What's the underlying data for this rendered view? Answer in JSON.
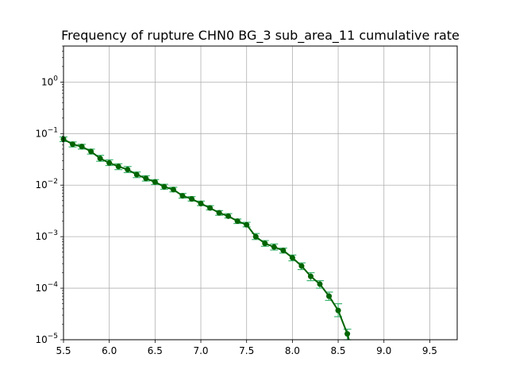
{
  "chart_data": {
    "type": "line",
    "title": "Frequency of rupture CHN0 BG_3 sub_area_11 cumulative rate",
    "xlabel": "",
    "ylabel": "",
    "xlim": [
      5.5,
      9.8
    ],
    "ylim": [
      1e-05,
      5
    ],
    "yscale": "log",
    "grid": true,
    "x_ticks": [
      5.5,
      6.0,
      6.5,
      7.0,
      7.5,
      8.0,
      8.5,
      9.0,
      9.5
    ],
    "x_tick_labels": [
      "5.5",
      "6.0",
      "6.5",
      "7.0",
      "7.5",
      "8.0",
      "8.5",
      "9.0",
      "9.5"
    ],
    "y_ticks": [
      1e-05,
      0.0001,
      0.001,
      0.01,
      0.1,
      1
    ],
    "y_tick_labels": [
      {
        "base": "10",
        "exp": "−5"
      },
      {
        "base": "10",
        "exp": "−4"
      },
      {
        "base": "10",
        "exp": "−3"
      },
      {
        "base": "10",
        "exp": "−2"
      },
      {
        "base": "10",
        "exp": "−1"
      },
      {
        "base": "10",
        "exp": "0"
      }
    ],
    "series": [
      {
        "color": "#006400",
        "error_color": "#3cb371",
        "x": [
          5.5,
          5.6,
          5.7,
          5.8,
          5.9,
          6.0,
          6.1,
          6.2,
          6.3,
          6.4,
          6.5,
          6.6,
          6.7,
          6.8,
          6.9,
          7.0,
          7.1,
          7.2,
          7.3,
          7.4,
          7.5,
          7.6,
          7.7,
          7.8,
          7.9,
          8.0,
          8.1,
          8.2,
          8.3,
          8.4,
          8.5,
          8.6
        ],
        "y": [
          0.078,
          0.062,
          0.056,
          0.045,
          0.033,
          0.027,
          0.023,
          0.02,
          0.016,
          0.0135,
          0.0115,
          0.0093,
          0.0082,
          0.0062,
          0.0054,
          0.0044,
          0.0036,
          0.0029,
          0.0025,
          0.002,
          0.0017,
          0.001,
          0.00074,
          0.00063,
          0.00054,
          0.00039,
          0.00027,
          0.00017,
          0.00012,
          7e-05,
          3.7e-05,
          1.3e-05
        ],
        "y_err_low": [
          0.07,
          0.055,
          0.05,
          0.04,
          0.029,
          0.024,
          0.02,
          0.0175,
          0.014,
          0.012,
          0.0103,
          0.0083,
          0.0074,
          0.0056,
          0.0049,
          0.004,
          0.0033,
          0.0026,
          0.0023,
          0.0018,
          0.00155,
          0.00088,
          0.00065,
          0.00055,
          0.00048,
          0.00034,
          0.00023,
          0.00014,
          0.0001,
          5.8e-05,
          2.8e-05,
          1e-05
        ],
        "y_err_high": [
          0.086,
          0.069,
          0.062,
          0.05,
          0.038,
          0.031,
          0.026,
          0.023,
          0.018,
          0.0152,
          0.0128,
          0.0104,
          0.0091,
          0.0069,
          0.006,
          0.0049,
          0.004,
          0.0032,
          0.0028,
          0.0022,
          0.0019,
          0.00115,
          0.00084,
          0.00072,
          0.0006,
          0.00044,
          0.00031,
          0.0002,
          0.00014,
          8.4e-05,
          5e-05,
          1.6e-05
        ]
      }
    ]
  }
}
